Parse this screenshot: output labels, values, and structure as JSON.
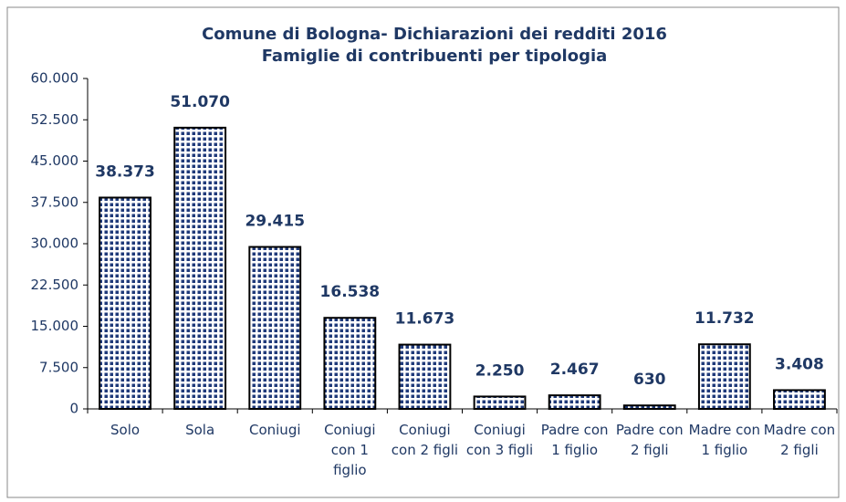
{
  "chart_data": {
    "type": "bar",
    "title": "Comune di Bologna- Dichiarazioni dei redditi 2016",
    "subtitle": "Famiglie di contribuenti per tipologia",
    "categories": [
      "Solo",
      "Sola",
      "Coniugi",
      "Coniugi con 1 figlio",
      "Coniugi con 2 figli",
      "Coniugi con 3 figli",
      "Padre con 1 figlio",
      "Padre con 2 figli",
      "Madre con 1 figlio",
      "Madre con 2 figli"
    ],
    "values": [
      38373,
      51070,
      29415,
      16538,
      11673,
      2250,
      2467,
      630,
      11732,
      3408
    ],
    "value_labels": [
      "38.373",
      "51.070",
      "29.415",
      "16.538",
      "11.673",
      "2.250",
      "2.467",
      "630",
      "11.732",
      "3.408"
    ],
    "color": "#1f3a7a",
    "ylim": [
      0,
      60000
    ],
    "yticks": [
      0,
      {
        "value": 7500,
        "label": "7.500"
      },
      {
        "value": 15000,
        "label": "15.000"
      },
      {
        "value": 22500,
        "label": "22.500"
      },
      {
        "value": 30000,
        "label": "30.000"
      },
      {
        "value": 37500,
        "label": "37.500"
      },
      {
        "value": 45000,
        "label": "45.000"
      },
      {
        "value": 52500,
        "label": "52.500"
      },
      {
        "value": 60000,
        "label": "60.000"
      }
    ],
    "grid": false
  }
}
